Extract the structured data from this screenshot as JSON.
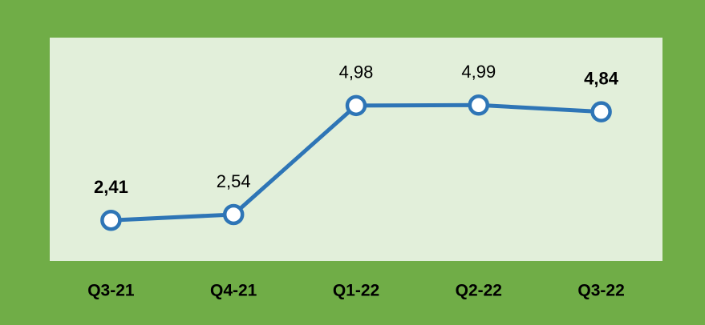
{
  "chart_data": {
    "type": "line",
    "categories": [
      "Q3-21",
      "Q4-21",
      "Q1-22",
      "Q2-22",
      "Q3-22"
    ],
    "values": [
      2.41,
      2.54,
      4.98,
      4.99,
      4.84
    ],
    "value_labels": [
      "2,41",
      "2,54",
      "4,98",
      "4,99",
      "4,84"
    ],
    "bold_value_labels": [
      0,
      4
    ],
    "color": "#2e75b6",
    "ylim": [
      1.5,
      6.5
    ]
  }
}
